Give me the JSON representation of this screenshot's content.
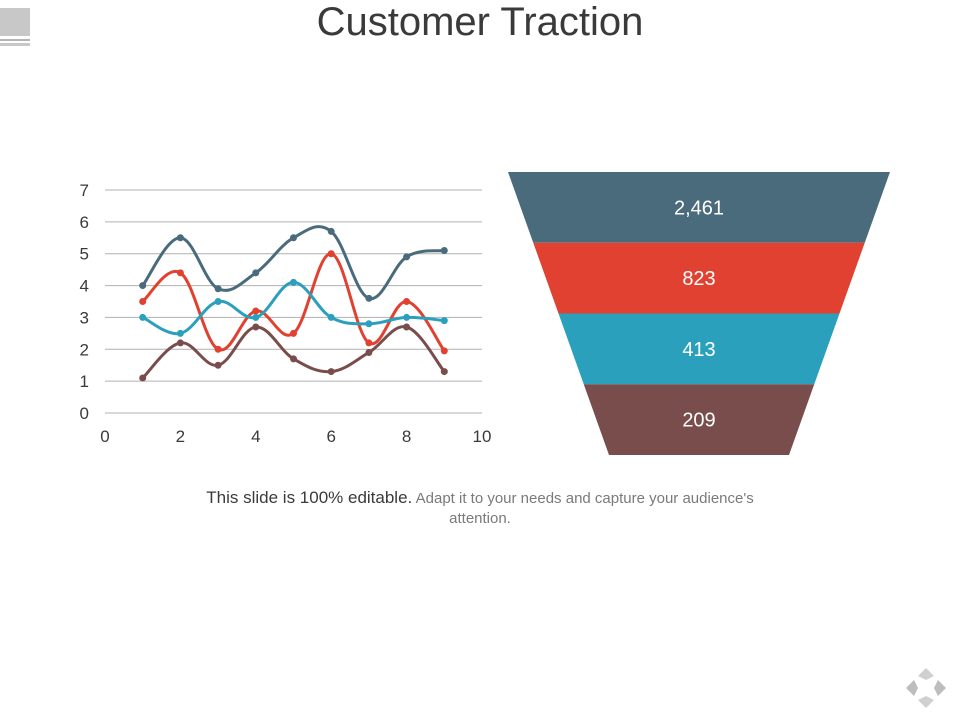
{
  "slide": {
    "title": "Customer Traction",
    "caption_bold": "This slide is 100% editable.",
    "caption_rest": "Adapt it to your needs and capture your audience's attention."
  },
  "chart_data": [
    {
      "type": "line",
      "xlim": [
        0,
        10
      ],
      "ylim": [
        0,
        7
      ],
      "x_ticks": [
        "0",
        "2",
        "4",
        "6",
        "8",
        "10"
      ],
      "y_ticks": [
        "0",
        "1",
        "2",
        "3",
        "4",
        "5",
        "6",
        "7"
      ],
      "grid": "horizontal",
      "x": [
        1,
        2,
        3,
        4,
        5,
        6,
        7,
        8,
        9
      ],
      "series": [
        {
          "color": "#4a6b7b",
          "values": [
            4.0,
            5.5,
            3.9,
            4.4,
            5.5,
            5.7,
            3.6,
            4.9,
            5.1
          ]
        },
        {
          "color": "#e04130",
          "values": [
            3.5,
            4.4,
            2.0,
            3.2,
            2.5,
            5.0,
            2.2,
            3.5,
            1.95
          ]
        },
        {
          "color": "#2ba0bc",
          "values": [
            3.0,
            2.5,
            3.5,
            3.0,
            4.1,
            3.0,
            2.8,
            3.0,
            2.9
          ]
        },
        {
          "color": "#7a4d4d",
          "values": [
            1.1,
            2.2,
            1.5,
            2.7,
            1.7,
            1.3,
            1.9,
            2.7,
            1.3
          ]
        }
      ]
    },
    {
      "type": "funnel",
      "labels": [
        "2,461",
        "823",
        "413",
        "209"
      ],
      "values": [
        2461,
        823,
        413,
        209
      ],
      "colors": [
        "#4a6b7b",
        "#e04130",
        "#2ba0bc",
        "#7a4d4d"
      ]
    }
  ]
}
